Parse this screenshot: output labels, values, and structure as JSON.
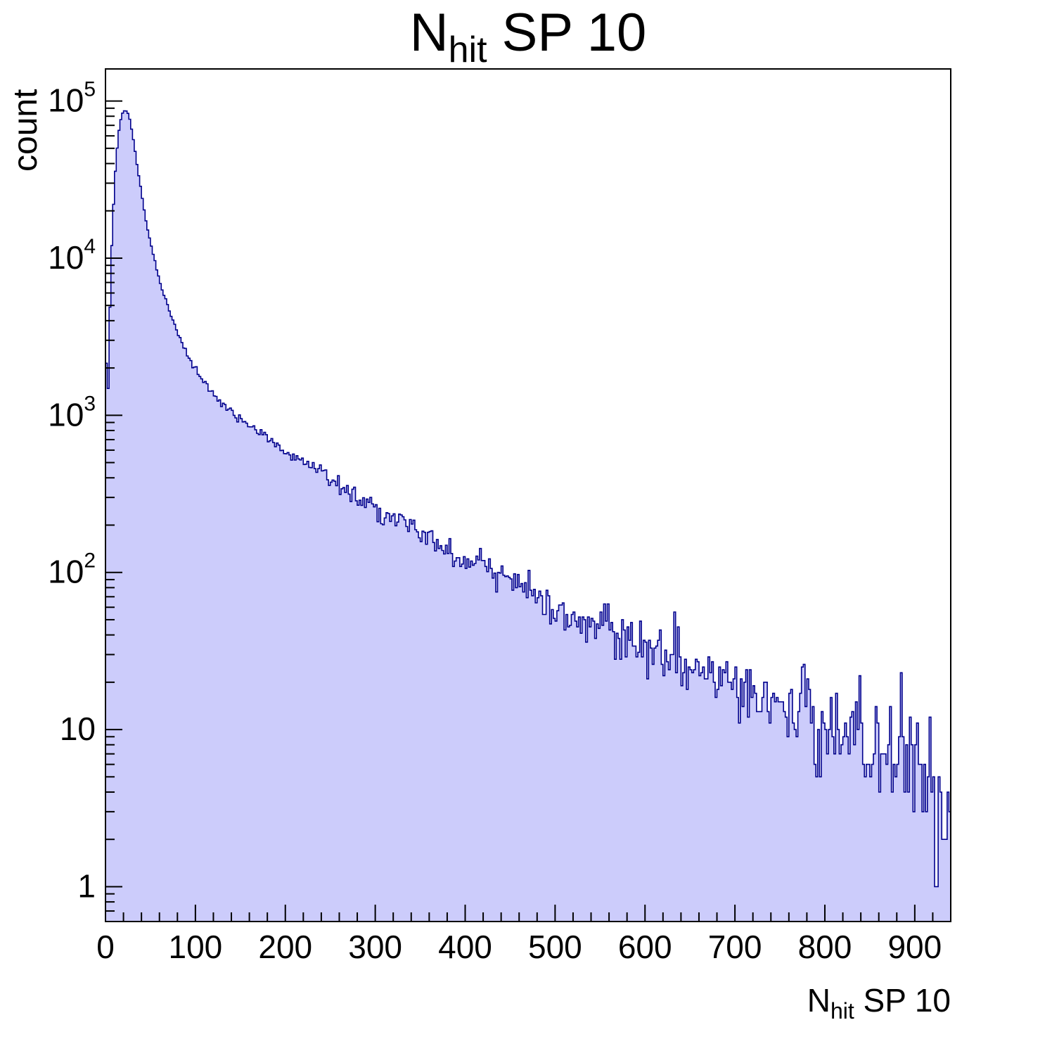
{
  "chart_data": {
    "type": "area",
    "subtype": "histogram-log-y",
    "title_parts": [
      {
        "text": "N",
        "sub": false
      },
      {
        "text": "hit",
        "sub": true
      },
      {
        "text": " SP 10",
        "sub": false
      }
    ],
    "xlabel_parts": [
      {
        "text": "N",
        "sub": false
      },
      {
        "text": "hit",
        "sub": true
      },
      {
        "text": " SP 10",
        "sub": false
      }
    ],
    "ylabel": "count",
    "xlim": [
      0,
      940
    ],
    "ylim": [
      0.6,
      160000
    ],
    "yscale": "log",
    "grid": false,
    "legend": "none",
    "x_major_ticks": [
      0,
      100,
      200,
      300,
      400,
      500,
      600,
      700,
      800,
      900
    ],
    "x_tick_labels": [
      "0",
      "100",
      "200",
      "300",
      "400",
      "500",
      "600",
      "700",
      "800",
      "900"
    ],
    "x_minor_step": 20,
    "y_major_ticks": [
      1,
      10,
      100,
      1000,
      10000,
      100000
    ],
    "y_tick_labels": [
      "1",
      "10",
      "10^2",
      "10^3",
      "10^4",
      "10^5"
    ],
    "bin_width": 2,
    "noise_seed": 1337,
    "colors": {
      "fill": "#ccccfb",
      "line": "#00008c",
      "axis": "#000000",
      "text": "#000000",
      "background": "#ffffff"
    },
    "peak": {
      "x": 22,
      "count": 88000
    },
    "profile_anchors": [
      [
        0,
        2500
      ],
      [
        3,
        1500
      ],
      [
        6,
        9000
      ],
      [
        10,
        30000
      ],
      [
        14,
        60000
      ],
      [
        18,
        82000
      ],
      [
        22,
        88000
      ],
      [
        26,
        82000
      ],
      [
        30,
        62000
      ],
      [
        35,
        40000
      ],
      [
        40,
        26000
      ],
      [
        45,
        17500
      ],
      [
        50,
        12500
      ],
      [
        60,
        7200
      ],
      [
        70,
        4800
      ],
      [
        80,
        3400
      ],
      [
        90,
        2500
      ],
      [
        100,
        1950
      ],
      [
        115,
        1500
      ],
      [
        130,
        1180
      ],
      [
        150,
        940
      ],
      [
        170,
        780
      ],
      [
        200,
        590
      ],
      [
        230,
        470
      ],
      [
        260,
        370
      ],
      [
        300,
        255
      ],
      [
        340,
        190
      ],
      [
        380,
        140
      ],
      [
        420,
        105
      ],
      [
        460,
        80
      ],
      [
        500,
        60
      ],
      [
        540,
        47
      ],
      [
        580,
        37
      ],
      [
        620,
        30
      ],
      [
        660,
        24
      ],
      [
        700,
        19
      ],
      [
        740,
        15
      ],
      [
        780,
        12
      ],
      [
        820,
        10
      ],
      [
        860,
        8
      ],
      [
        900,
        6
      ],
      [
        920,
        4.5
      ],
      [
        935,
        2.5
      ],
      [
        940,
        2
      ]
    ]
  }
}
